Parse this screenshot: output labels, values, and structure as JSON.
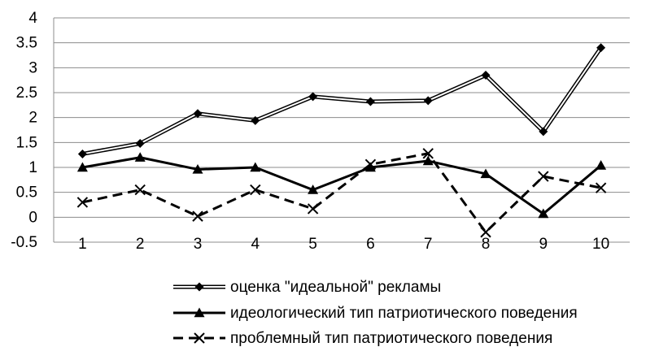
{
  "chart_data": {
    "type": "line",
    "x": [
      1,
      2,
      3,
      4,
      5,
      6,
      7,
      8,
      9,
      10
    ],
    "ylim": [
      -0.5,
      4
    ],
    "yticks": [
      "-0.5",
      "0",
      "0.5",
      "1",
      "1.5",
      "2",
      "2.5",
      "3",
      "3.5",
      "4"
    ],
    "yticks_values": [
      -0.5,
      0,
      0.5,
      1,
      1.5,
      2,
      2.5,
      3,
      3.5,
      4
    ],
    "xticks": [
      "1",
      "2",
      "3",
      "4",
      "5",
      "6",
      "7",
      "8",
      "9",
      "10"
    ],
    "grid": "horizontal",
    "legend_position": "bottom",
    "series": [
      {
        "name": "оценка \"идеальной\" рекламы",
        "values": [
          1.27,
          1.48,
          2.08,
          1.94,
          2.42,
          2.32,
          2.34,
          2.85,
          1.72,
          3.4
        ],
        "style": "double-line",
        "marker": "diamond",
        "color": "#000000"
      },
      {
        "name": "идеологический тип патриотического поведения",
        "values": [
          1.0,
          1.2,
          0.96,
          1.0,
          0.55,
          1.0,
          1.13,
          0.87,
          0.07,
          1.04
        ],
        "style": "solid",
        "marker": "triangle",
        "color": "#000000"
      },
      {
        "name": "проблемный тип патриотического поведения",
        "values": [
          0.3,
          0.55,
          0.02,
          0.55,
          0.17,
          1.06,
          1.28,
          -0.3,
          0.82,
          0.59
        ],
        "style": "dashed",
        "marker": "x",
        "color": "#000000"
      }
    ]
  }
}
